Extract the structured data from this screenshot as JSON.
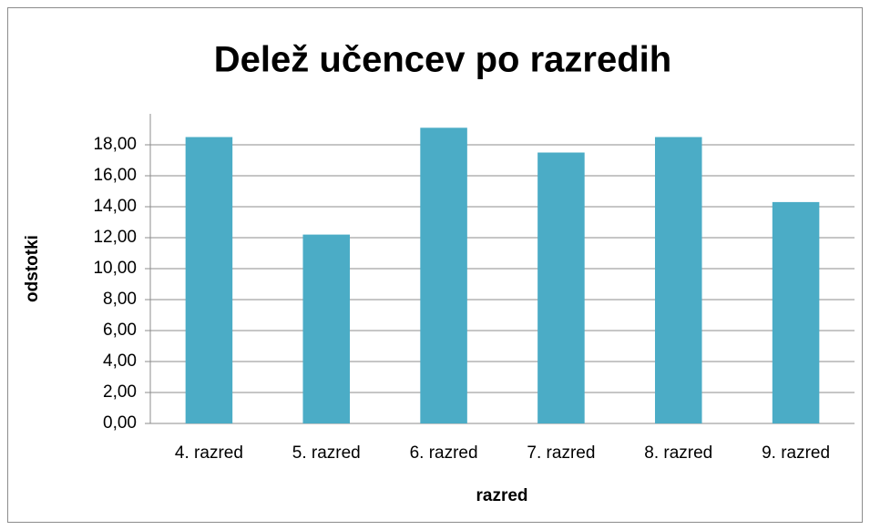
{
  "chart_data": {
    "type": "bar",
    "title": "Delež učencev po razredih",
    "x_label": "razred",
    "y_label": "odstotki",
    "categories": [
      "4. razred",
      "5. razred",
      "6. razred",
      "7. razred",
      "8. razred",
      "9. razred"
    ],
    "values": [
      18.5,
      12.2,
      19.1,
      17.5,
      18.5,
      14.3
    ],
    "color": "#4bacc6",
    "ylim": [
      0,
      20
    ],
    "yticks": [
      {
        "value": 0,
        "label": "0,00"
      },
      {
        "value": 2,
        "label": "2,00"
      },
      {
        "value": 4,
        "label": "4,00"
      },
      {
        "value": 6,
        "label": "6,00"
      },
      {
        "value": 8,
        "label": "8,00"
      },
      {
        "value": 10,
        "label": "10,00"
      },
      {
        "value": 12,
        "label": "12,00"
      },
      {
        "value": 14,
        "label": "14,00"
      },
      {
        "value": 16,
        "label": "16,00"
      },
      {
        "value": 18,
        "label": "18,00"
      }
    ],
    "grid": true
  }
}
